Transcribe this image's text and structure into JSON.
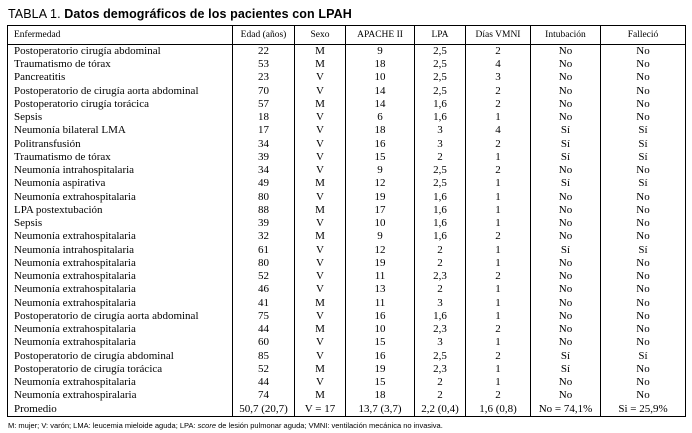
{
  "title": {
    "label": "TABLA 1.",
    "text": "Datos demográficos de los pacientes con LPAH"
  },
  "table": {
    "headers": [
      "Enfermedad",
      "Edad (años)",
      "Sexo",
      "APACHE II",
      "LPA",
      "Días VMNI",
      "Intubación",
      "Falleció"
    ],
    "rows": [
      [
        "Postoperatorio cirugía abdominal",
        "22",
        "M",
        "9",
        "2,5",
        "2",
        "No",
        "No"
      ],
      [
        "Traumatismo de tórax",
        "53",
        "M",
        "18",
        "2,5",
        "4",
        "No",
        "No"
      ],
      [
        "Pancreatitis",
        "23",
        "V",
        "10",
        "2,5",
        "3",
        "No",
        "No"
      ],
      [
        "Postoperatorio de cirugía aorta abdominal",
        "70",
        "V",
        "14",
        "2,5",
        "2",
        "No",
        "No"
      ],
      [
        "Postoperatorio cirugía torácica",
        "57",
        "M",
        "14",
        "1,6",
        "2",
        "No",
        "No"
      ],
      [
        "Sepsis",
        "18",
        "V",
        "6",
        "1,6",
        "1",
        "No",
        "No"
      ],
      [
        "Neumonía bilateral LMA",
        "17",
        "V",
        "18",
        "3",
        "4",
        "Sí",
        "Sí"
      ],
      [
        "Politransfusión",
        "34",
        "V",
        "16",
        "3",
        "2",
        "Sí",
        "Sí"
      ],
      [
        "Traumatismo de tórax",
        "39",
        "V",
        "15",
        "2",
        "1",
        "Sí",
        "Sí"
      ],
      [
        "Neumonía intrahospitalaria",
        "34",
        "V",
        "9",
        "2,5",
        "2",
        "No",
        "No"
      ],
      [
        "Neumonía aspirativa",
        "49",
        "M",
        "12",
        "2,5",
        "1",
        "Sí",
        "Sí"
      ],
      [
        "Neumonía extrahospitalaria",
        "80",
        "V",
        "19",
        "1,6",
        "1",
        "No",
        "No"
      ],
      [
        "LPA postextubación",
        "88",
        "M",
        "17",
        "1,6",
        "1",
        "No",
        "No"
      ],
      [
        "Sepsis",
        "39",
        "V",
        "10",
        "1,6",
        "1",
        "No",
        "No"
      ],
      [
        "Neumonía extrahospitalaria",
        "32",
        "M",
        "9",
        "1,6",
        "2",
        "No",
        "No"
      ],
      [
        "Neumonía intrahospitalaria",
        "61",
        "V",
        "12",
        "2",
        "1",
        "Sí",
        "Sí"
      ],
      [
        "Neumonía extrahospitalaria",
        "80",
        "V",
        "19",
        "2",
        "1",
        "No",
        "No"
      ],
      [
        "Neumonía extrahospitalaria",
        "52",
        "V",
        "11",
        "2,3",
        "2",
        "No",
        "No"
      ],
      [
        "Neumonía extrahospitalaria",
        "46",
        "V",
        "13",
        "2",
        "1",
        "No",
        "No"
      ],
      [
        "Neumonía extrahospitalaria",
        "41",
        "M",
        "11",
        "3",
        "1",
        "No",
        "No"
      ],
      [
        "Postoperatorio de cirugía aorta abdominal",
        "75",
        "V",
        "16",
        "1,6",
        "1",
        "No",
        "No"
      ],
      [
        "Neumonía extrahospitalaria",
        "44",
        "M",
        "10",
        "2,3",
        "2",
        "No",
        "No"
      ],
      [
        "Neumonía extrahospitalaria",
        "60",
        "V",
        "15",
        "3",
        "1",
        "No",
        "No"
      ],
      [
        "Postoperatorio de cirugía abdominal",
        "85",
        "V",
        "16",
        "2,5",
        "2",
        "Sí",
        "Sí"
      ],
      [
        "Postoperatorio de cirugía torácica",
        "52",
        "M",
        "19",
        "2,3",
        "1",
        "Sí",
        "No"
      ],
      [
        "Neumonía extrahospitalaria",
        "44",
        "V",
        "15",
        "2",
        "1",
        "No",
        "No"
      ],
      [
        "Neumonía extrahospiralaria",
        "74",
        "M",
        "18",
        "2",
        "2",
        "No",
        "No"
      ]
    ],
    "summary_row": [
      "Promedio",
      "50,7 (20,7)",
      "V = 17",
      "13,7 (3,7)",
      "2,2 (0,4)",
      "1,6 (0,8)",
      "No = 74,1%",
      "Si = 25,9%"
    ]
  },
  "footnote": {
    "parts": [
      "M: mujer; V: varón; LMA: leucemia mieloide aguda; LPA: ",
      "score",
      " de lesión pulmonar aguda; VMNI: ventilación mecánica no invasiva."
    ]
  }
}
